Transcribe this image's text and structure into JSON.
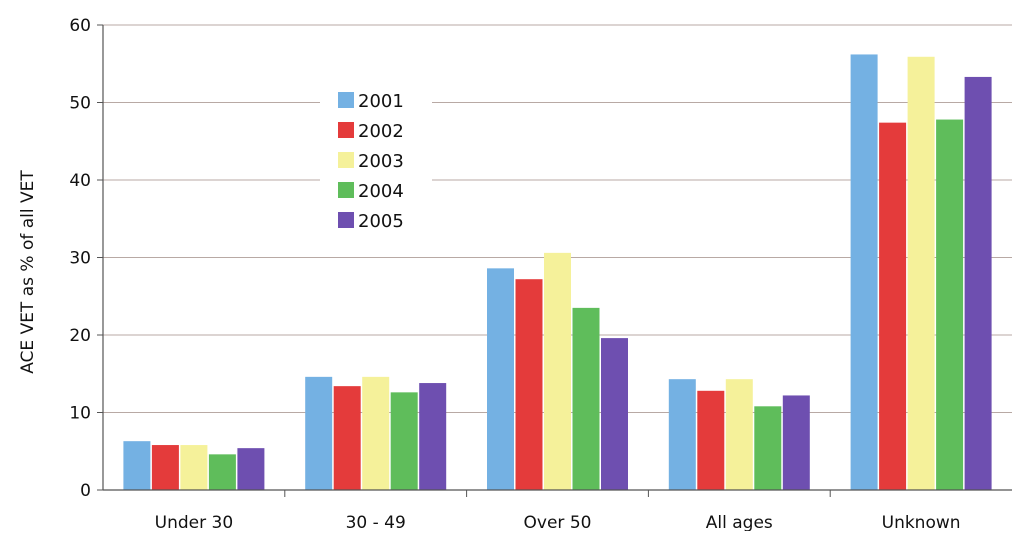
{
  "chart_data": {
    "type": "bar",
    "ylabel": "ACE VET as % of all VET",
    "xlabel": "",
    "ylim": [
      0,
      60
    ],
    "yticks": [
      0,
      10,
      20,
      30,
      40,
      50,
      60
    ],
    "grid": "horizontal",
    "legend_position": "upper-left-center",
    "categories": [
      "Under 30",
      "30 - 49",
      "Over 50",
      "All ages",
      "Unknown"
    ],
    "series": [
      {
        "name": "2001",
        "color": "#74b1e3",
        "values": [
          6.3,
          14.6,
          28.6,
          14.3,
          56.2
        ]
      },
      {
        "name": "2002",
        "color": "#e43b3b",
        "values": [
          5.8,
          13.4,
          27.2,
          12.8,
          47.4
        ]
      },
      {
        "name": "2003",
        "color": "#f5f19a",
        "values": [
          5.8,
          14.6,
          30.6,
          14.3,
          55.9
        ]
      },
      {
        "name": "2004",
        "color": "#5fbd5b",
        "values": [
          4.6,
          12.6,
          23.5,
          10.8,
          47.8
        ]
      },
      {
        "name": "2005",
        "color": "#6e4fb0",
        "values": [
          5.4,
          13.8,
          19.6,
          12.2,
          53.3
        ]
      }
    ]
  }
}
